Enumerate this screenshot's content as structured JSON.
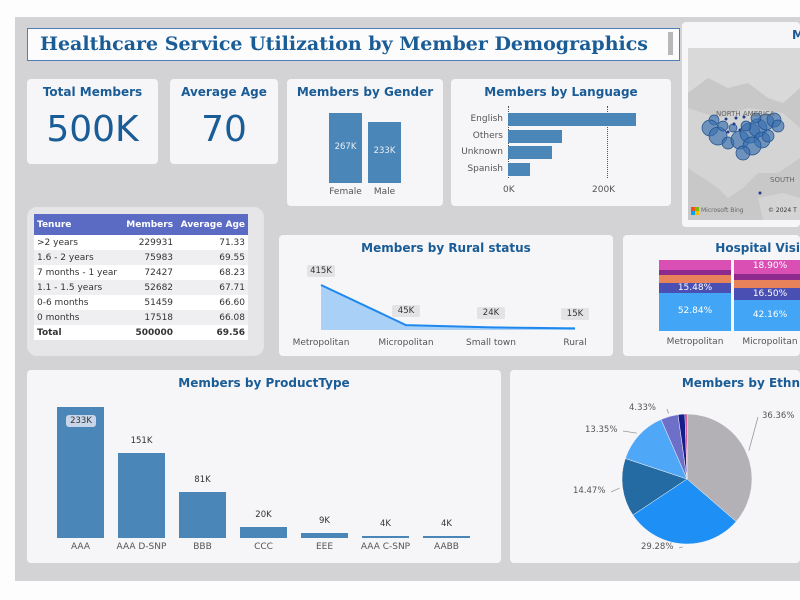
{
  "header": {
    "title": "Healthcare Service Utilization by Member Demographics"
  },
  "kpis": [
    {
      "label": "Total Members",
      "value": "500K"
    },
    {
      "label": "Average Age",
      "value": "70"
    }
  ],
  "map": {
    "title_partial": "M",
    "labels": {
      "continent": "NORTH AMERICA",
      "south": "SOUTH",
      "attribution": "Microsoft Bing",
      "copyright": "© 2024 T"
    }
  },
  "tenure_table": {
    "columns": [
      "Tenure",
      "Members",
      "Average Age"
    ],
    "rows": [
      {
        "tenure": ">2 years",
        "members": "229931",
        "avg_age": "71.33"
      },
      {
        "tenure": "1.6 - 2 years",
        "members": "75983",
        "avg_age": "69.55"
      },
      {
        "tenure": "7 months - 1 year",
        "members": "72427",
        "avg_age": "68.23"
      },
      {
        "tenure": "1.1 - 1.5 years",
        "members": "52682",
        "avg_age": "67.71"
      },
      {
        "tenure": "0-6 months",
        "members": "51459",
        "avg_age": "66.60"
      },
      {
        "tenure": "0 months",
        "members": "17518",
        "avg_age": "66.08"
      }
    ],
    "total": {
      "tenure": "Total",
      "members": "500000",
      "avg_age": "69.56"
    }
  },
  "chart_data": [
    {
      "id": "gender",
      "type": "bar",
      "title": "Members by Gender",
      "categories": [
        "Female",
        "Male"
      ],
      "values": [
        267,
        233
      ],
      "labels": [
        "267K",
        "233K"
      ],
      "unit": "K"
    },
    {
      "id": "language",
      "type": "bar",
      "orientation": "horizontal",
      "title": "Members by Language",
      "categories": [
        "English",
        "Others",
        "Unknown",
        "Spanish"
      ],
      "values": [
        258,
        110,
        88,
        45
      ],
      "xticks": [
        "0K",
        "200K"
      ],
      "xlim": [
        0,
        200
      ],
      "unit": "K"
    },
    {
      "id": "rural",
      "type": "area",
      "title": "Members by Rural status",
      "categories": [
        "Metropolitan",
        "Micropolitan",
        "Small town",
        "Rural"
      ],
      "values": [
        415,
        45,
        24,
        15
      ],
      "labels": [
        "415K",
        "45K",
        "24K",
        "15K"
      ],
      "unit": "K"
    },
    {
      "id": "hospital",
      "type": "bar",
      "stacked": true,
      "title_partial": "Hospital Visi",
      "categories": [
        "Metropolitan",
        "Micropolitan"
      ],
      "series_colors": [
        "#42a5f5",
        "#4a4fb3",
        "#e8825a",
        "#8e2a8e",
        "#d94fb4"
      ],
      "series": [
        {
          "name": "s1",
          "values": [
            52.84,
            42.16
          ],
          "labels": [
            "52.84%",
            "42.16%"
          ]
        },
        {
          "name": "s2",
          "values": [
            15.48,
            16.5
          ],
          "labels": [
            "15.48%",
            "16.50%"
          ]
        },
        {
          "name": "s3",
          "values": [
            10.5,
            11.5
          ],
          "labels": [
            "",
            ""
          ]
        },
        {
          "name": "s4",
          "values": [
            7.5,
            8.0
          ],
          "labels": [
            "",
            ""
          ]
        },
        {
          "name": "s5",
          "values": [
            13.68,
            18.9
          ],
          "labels": [
            "",
            "18.90%"
          ]
        }
      ]
    },
    {
      "id": "product",
      "type": "bar",
      "title": "Members by ProductType",
      "categories": [
        "AAA",
        "AAA D-SNP",
        "BBB",
        "CCC",
        "EEE",
        "AAA C-SNP",
        "AABB"
      ],
      "values": [
        233,
        151,
        81,
        20,
        9,
        4,
        4
      ],
      "labels": [
        "233K",
        "151K",
        "81K",
        "20K",
        "9K",
        "4K",
        "4K"
      ],
      "unit": "K"
    },
    {
      "id": "ethnicity",
      "type": "pie",
      "title_partial": "Members by Ethn",
      "values": [
        36.36,
        29.28,
        14.47,
        13.35,
        4.33,
        1.7,
        0.51
      ],
      "labels": [
        "36.36%",
        "29.28%",
        "14.47%",
        "13.35%",
        "4.33%",
        "",
        ""
      ],
      "colors": [
        "#b3b1b6",
        "#1e90f5",
        "#246aa3",
        "#4fa8f7",
        "#6e6fc9",
        "#141d8c",
        "#c0307a"
      ]
    }
  ]
}
